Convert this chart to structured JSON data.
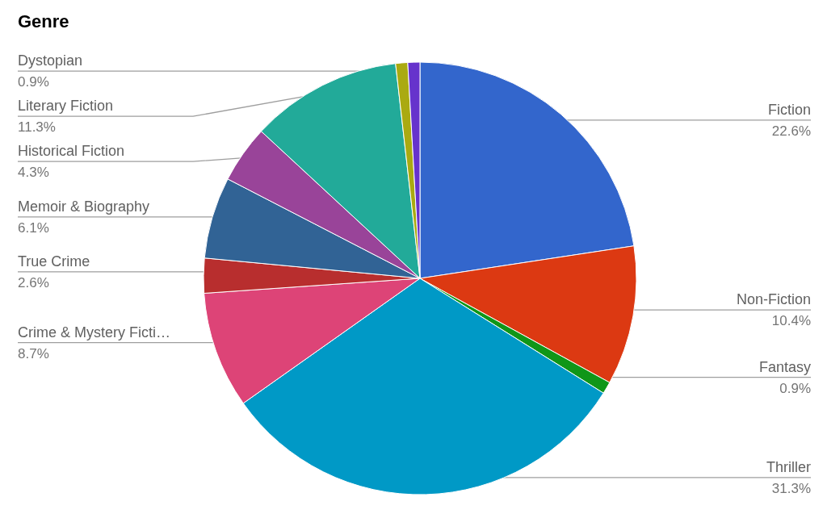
{
  "chart_data": {
    "type": "pie",
    "title": "Genre",
    "categories": [
      "Fiction",
      "Non-Fiction",
      "Fantasy",
      "Thriller",
      "Crime & Mystery Ficti…",
      "True Crime",
      "Memoir & Biography",
      "Historical Fiction",
      "Literary Fiction",
      null,
      "Dystopian"
    ],
    "values": [
      22.6,
      10.4,
      0.9,
      31.3,
      8.7,
      2.6,
      6.1,
      4.3,
      11.3,
      0.9,
      0.9
    ],
    "colors": [
      "#3366cc",
      "#dc3912",
      "#109618",
      "#0099c6",
      "#dd4477",
      "#b82e2e",
      "#316395",
      "#994499",
      "#22aa99",
      "#aaaa11",
      "#6633cc"
    ],
    "value_labels": [
      "22.6%",
      "10.4%",
      "0.9%",
      "31.3%",
      "8.7%",
      "2.6%",
      "6.1%",
      "4.3%",
      "11.3%",
      null,
      "0.9%"
    ]
  }
}
